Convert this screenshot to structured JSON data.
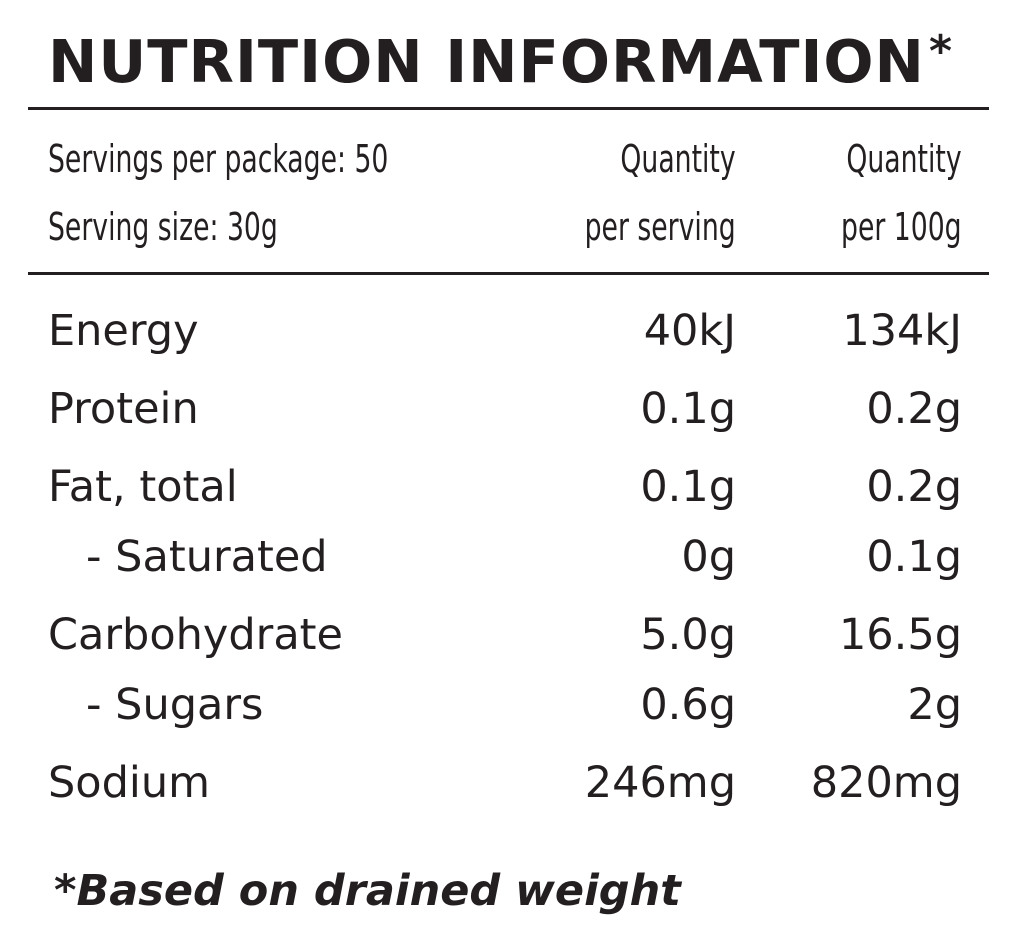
{
  "panel": {
    "title": "NUTRITION INFORMATION",
    "title_marker": "*",
    "header": {
      "servings_per_package": "Servings per package: 50",
      "serving_size": "Serving size: 30g",
      "col1_line1": "Quantity",
      "col1_line2": "per serving",
      "col2_line1": "Quantity",
      "col2_line2": "per 100g"
    },
    "rows": [
      {
        "label": "Energy",
        "per_serving": "40kJ",
        "per_100g": "134kJ"
      },
      {
        "label": "Protein",
        "per_serving": "0.1g",
        "per_100g": "0.2g"
      },
      {
        "label": "Fat, total",
        "per_serving": "0.1g",
        "per_100g": "0.2g"
      },
      {
        "label": "- Saturated",
        "per_serving": "0g",
        "per_100g": "0.1g"
      },
      {
        "label": "Carbohydrate",
        "per_serving": "5.0g",
        "per_100g": "16.5g"
      },
      {
        "label": "- Sugars",
        "per_serving": "0.6g",
        "per_100g": "2g"
      },
      {
        "label": "Sodium",
        "per_serving": "246mg",
        "per_100g": "820mg"
      }
    ],
    "footnote": "*Based on drained weight"
  }
}
